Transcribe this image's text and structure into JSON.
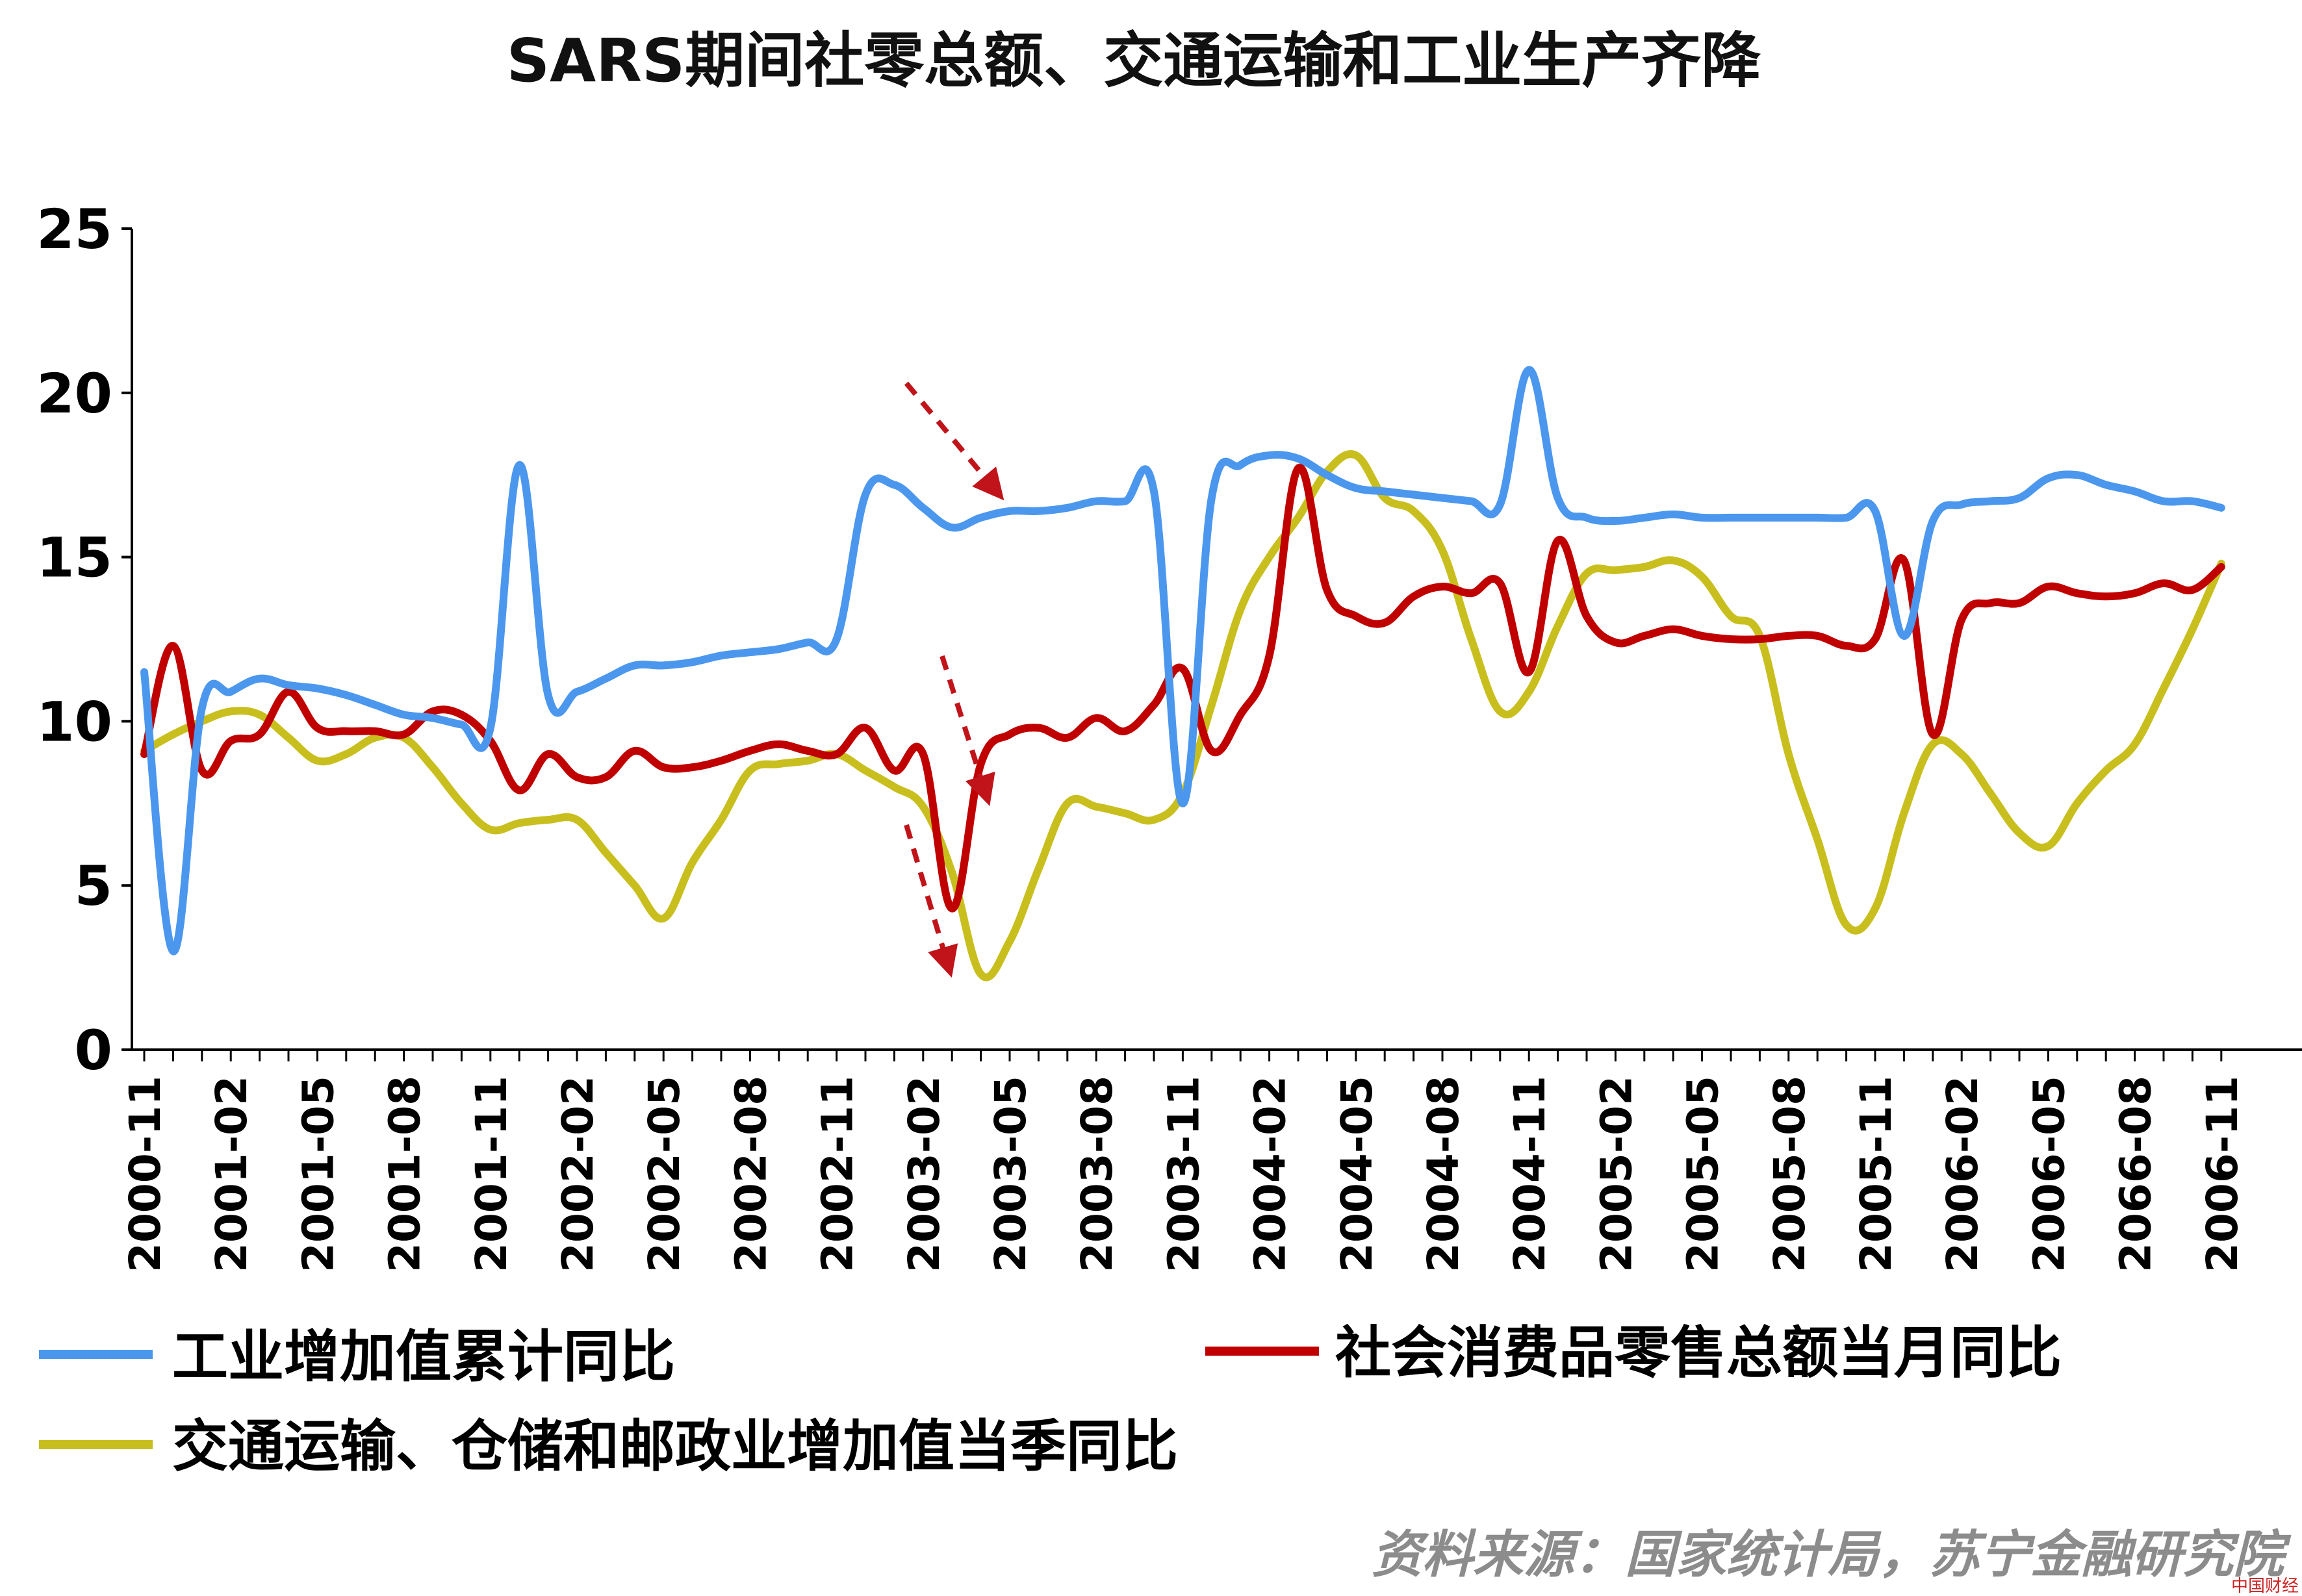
{
  "chart_data": {
    "type": "line",
    "title": "SARS期间社零总额、交通运输和工业生产齐降",
    "ylim": [
      0,
      25
    ],
    "yticks": [
      "0",
      "5",
      "10",
      "15",
      "20",
      "25"
    ],
    "tick_labels": [
      "2000-11",
      "2001-02",
      "2001-05",
      "2001-08",
      "2001-11",
      "2002-02",
      "2002-05",
      "2002-08",
      "2002-11",
      "2003-02",
      "2003-05",
      "2003-08",
      "2003-11",
      "2004-02",
      "2004-05",
      "2004-08",
      "2004-11",
      "2005-02",
      "2005-05",
      "2005-08",
      "2005-11",
      "2006-02",
      "2006-05",
      "2066-08",
      "2006-11"
    ],
    "x_months": 73,
    "series": [
      {
        "name": "工业增加值累计同比",
        "color": "#4b97ee",
        "values": [
          11.5,
          3.0,
          10.4,
          10.9,
          11.3,
          11.1,
          11.0,
          10.8,
          10.5,
          10.2,
          10.1,
          9.9,
          9.8,
          17.8,
          10.8,
          10.9,
          11.3,
          11.7,
          11.7,
          11.8,
          12.0,
          12.1,
          12.2,
          12.4,
          12.5,
          16.9,
          17.2,
          16.5,
          15.9,
          16.2,
          16.4,
          16.4,
          16.5,
          16.7,
          16.7,
          17.0,
          7.5,
          16.8,
          17.8,
          18.1,
          18.0,
          17.5,
          17.1,
          17.0,
          16.9,
          16.8,
          16.7,
          16.6,
          20.7,
          16.8,
          16.2,
          16.1,
          16.2,
          16.3,
          16.2,
          16.2,
          16.2,
          16.2,
          16.2,
          16.2,
          16.4,
          12.6,
          16.1,
          16.6,
          16.7,
          16.8,
          17.4,
          17.5,
          17.2,
          17.0,
          16.7,
          16.7,
          16.5
        ]
      },
      {
        "name": "社会消费品零售总额当月同比",
        "color": "#c00000",
        "values": [
          9.0,
          12.3,
          8.5,
          9.4,
          9.6,
          10.9,
          9.8,
          9.7,
          9.7,
          9.6,
          10.3,
          10.2,
          9.4,
          7.9,
          9.0,
          8.3,
          8.3,
          9.1,
          8.6,
          8.6,
          8.8,
          9.1,
          9.3,
          9.1,
          9.0,
          9.8,
          8.5,
          9.0,
          4.3,
          8.7,
          9.6,
          9.8,
          9.5,
          10.1,
          9.7,
          10.5,
          11.6,
          9.1,
          10.2,
          12.0,
          17.7,
          14.0,
          13.2,
          13.0,
          13.8,
          14.1,
          13.9,
          14.2,
          11.5,
          15.5,
          13.2,
          12.4,
          12.6,
          12.8,
          12.6,
          12.5,
          12.5,
          12.6,
          12.6,
          12.3,
          12.5,
          14.9,
          9.6,
          13.1,
          13.6,
          13.6,
          14.1,
          13.9,
          13.8,
          13.9,
          14.2,
          14.0,
          14.7
        ]
      },
      {
        "name": "交通运输、仓储和邮政业增加值当季同比",
        "color": "#c8bf1e",
        "values": [
          9.1,
          9.6,
          10.0,
          10.3,
          10.2,
          9.5,
          8.8,
          9.0,
          9.5,
          9.5,
          8.6,
          7.5,
          6.7,
          6.9,
          7.0,
          7.0,
          6.0,
          5.0,
          4.0,
          5.7,
          7.0,
          8.5,
          8.7,
          8.8,
          9.0,
          8.5,
          8.0,
          7.4,
          5.4,
          2.3,
          3.3,
          5.5,
          7.5,
          7.4,
          7.2,
          7.0,
          7.8,
          10.5,
          13.4,
          15.0,
          16.2,
          17.6,
          18.1,
          16.8,
          16.4,
          15.2,
          12.5,
          10.3,
          10.9,
          12.9,
          14.5,
          14.6,
          14.7,
          14.9,
          14.4,
          13.2,
          12.6,
          9.0,
          6.4,
          3.8,
          4.3,
          7.2,
          9.3,
          9.0,
          7.8,
          6.6,
          6.2,
          7.5,
          8.5,
          9.3,
          11.0,
          12.8,
          14.8
        ]
      }
    ],
    "annotations": [
      "dashed-arrow-transport",
      "dashed-arrow-retail",
      "dashed-arrow-industry"
    ],
    "source": "资料来源：国家统计局，苏宁金融研究院",
    "watermark": "中国财经"
  }
}
